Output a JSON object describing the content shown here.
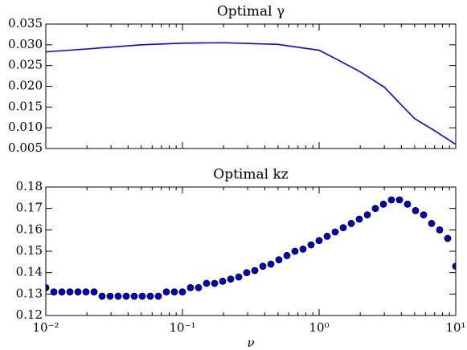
{
  "chart_data": [
    {
      "type": "line",
      "title": "Optimal γ",
      "log_x": true,
      "x": [
        0.01,
        0.02,
        0.05,
        0.1,
        0.2,
        0.5,
        1,
        1.4,
        2,
        3,
        4,
        5,
        7,
        10
      ],
      "series": [
        {
          "color": "#0000ff",
          "values": [
            0.0283,
            0.029,
            0.03,
            0.0304,
            0.0305,
            0.0301,
            0.0287,
            0.0262,
            0.0235,
            0.0198,
            0.0155,
            0.0122,
            0.0093,
            0.006
          ]
        }
      ],
      "xlim": [
        0.01,
        10
      ],
      "xticks": [
        0.01,
        0.1,
        1,
        10
      ],
      "ylim": [
        0.005,
        0.035
      ],
      "yticks": [
        0.005,
        {
          "value": 0.01,
          "label": "0.010"
        },
        0.015,
        {
          "value": 0.02,
          "label": "0.020"
        },
        0.025,
        {
          "value": 0.03,
          "label": "0.030"
        },
        0.035
      ]
    },
    {
      "type": "scatter",
      "title": "Optimal kz",
      "log_x": true,
      "xlabel": "ν",
      "x": [
        0.01,
        0.01145,
        0.01311,
        0.01501,
        0.01719,
        0.01968,
        0.02254,
        0.02581,
        0.02955,
        0.03384,
        0.03875,
        0.04437,
        0.0508,
        0.05817,
        0.06661,
        0.07627,
        0.08733,
        0.1,
        0.1145,
        0.1311,
        0.1501,
        0.1719,
        0.1968,
        0.2254,
        0.2581,
        0.2955,
        0.3384,
        0.3875,
        0.4437,
        0.508,
        0.5817,
        0.6661,
        0.7627,
        0.8733,
        1,
        1.145,
        1.311,
        1.501,
        1.719,
        1.968,
        2.254,
        2.581,
        2.955,
        3.384,
        3.875,
        4.437,
        5.08,
        5.817,
        6.661,
        7.627,
        8.733,
        10
      ],
      "series": [
        {
          "color": "#0000cc",
          "values": [
            0.133,
            0.131,
            0.131,
            0.131,
            0.131,
            0.131,
            0.131,
            0.129,
            0.129,
            0.129,
            0.129,
            0.129,
            0.129,
            0.129,
            0.129,
            0.131,
            0.131,
            0.131,
            0.133,
            0.133,
            0.135,
            0.135,
            0.136,
            0.137,
            0.138,
            0.14,
            0.141,
            0.143,
            0.144,
            0.146,
            0.148,
            0.15,
            0.151,
            0.153,
            0.155,
            0.157,
            0.159,
            0.161,
            0.163,
            0.165,
            0.167,
            0.17,
            0.172,
            0.174,
            0.174,
            0.172,
            0.169,
            0.167,
            0.163,
            0.16,
            0.156,
            0.143
          ]
        }
      ],
      "xlim": [
        0.01,
        10
      ],
      "xticks": [
        {
          "value": 0.01,
          "label": "10⁻²"
        },
        {
          "value": 0.1,
          "label": "10⁻¹"
        },
        {
          "value": 1,
          "label": "10⁰"
        },
        {
          "value": 10,
          "label": "10¹"
        }
      ],
      "ylim": [
        0.12,
        0.18
      ],
      "yticks": [
        0.12,
        0.13,
        0.14,
        0.15,
        0.16,
        0.17,
        0.18
      ]
    }
  ]
}
